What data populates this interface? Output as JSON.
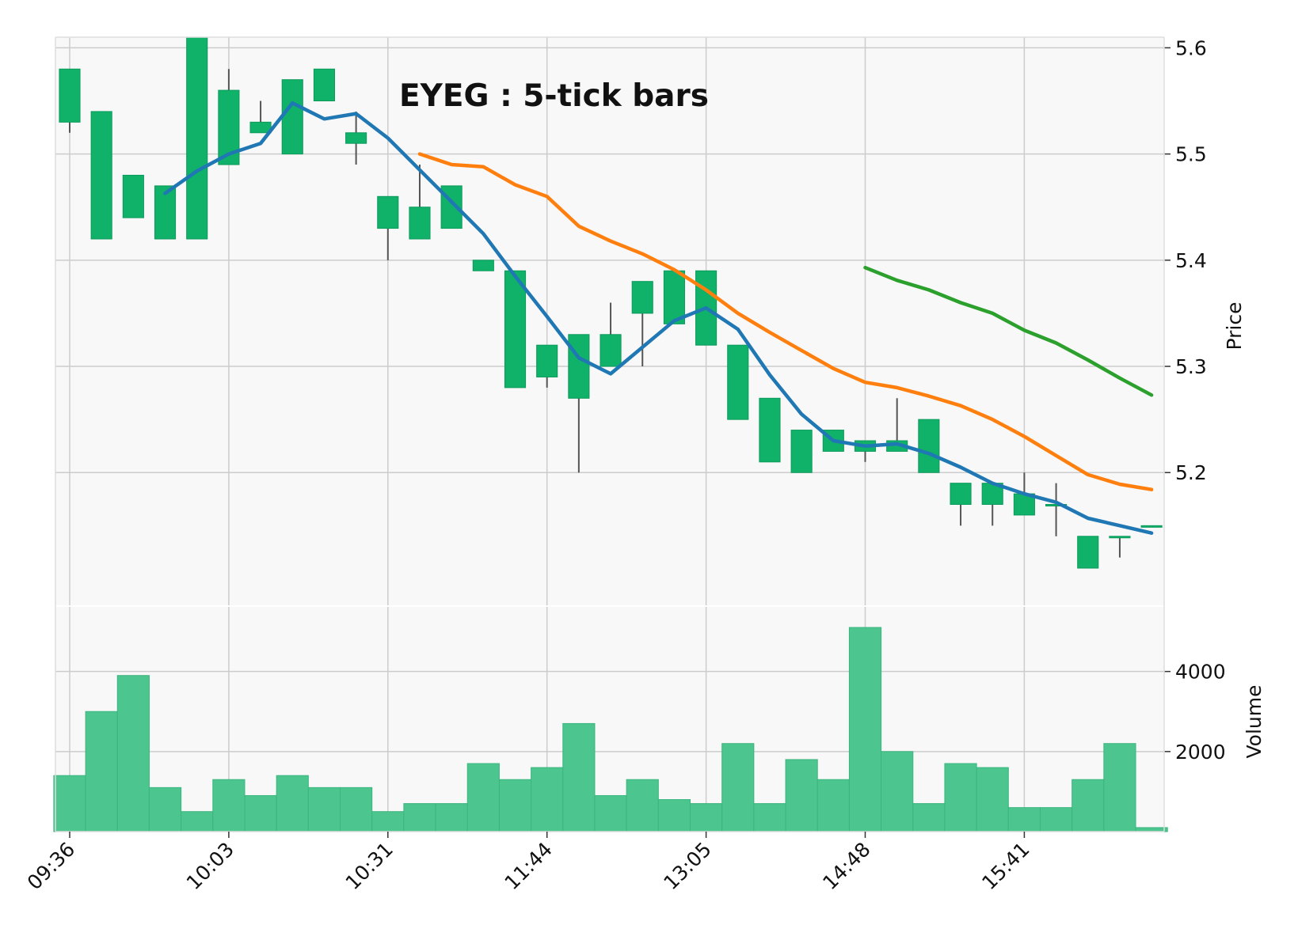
{
  "chart_data": {
    "type": "candlestick",
    "title": "EYEG : 5-tick bars",
    "price_ylabel": "Price",
    "volume_ylabel": "Volume",
    "price_ylim": [
      5.075,
      5.61
    ],
    "volume_ylim": [
      0,
      5100
    ],
    "price_ticks": [
      "5.2",
      "5.3",
      "5.4",
      "5.5",
      "5.6"
    ],
    "volume_ticks": [
      "2000",
      "4000"
    ],
    "grid": true,
    "colors": {
      "up": "#10b26a",
      "down": "#ff3b3b",
      "up_volume": "#4cc68e",
      "down_volume": "#fe6b6b",
      "ma_short": "#1f77b4",
      "ma_mid": "#ff7f0e",
      "ma_long": "#2ca02c",
      "panel_bg": "#f8f8f8",
      "grid": "#cccccc"
    },
    "x_ticks": [
      {
        "index": 0,
        "label": "09:36"
      },
      {
        "index": 5,
        "label": "10:03"
      },
      {
        "index": 10,
        "label": "10:31"
      },
      {
        "index": 15,
        "label": "11:44"
      },
      {
        "index": 20,
        "label": "13:05"
      },
      {
        "index": 25,
        "label": "14:48"
      },
      {
        "index": 30,
        "label": "15:41"
      }
    ],
    "candles": [
      {
        "o": 5.53,
        "h": 5.58,
        "l": 5.52,
        "c": 5.58,
        "v": 1400
      },
      {
        "o": 5.42,
        "h": 5.54,
        "l": 5.42,
        "c": 5.54,
        "v": 3000
      },
      {
        "o": 5.44,
        "h": 5.48,
        "l": 5.44,
        "c": 5.48,
        "v": 3900
      },
      {
        "o": 5.42,
        "h": 5.47,
        "l": 5.42,
        "c": 5.47,
        "v": 1100
      },
      {
        "o": 5.42,
        "h": 5.61,
        "l": 5.42,
        "c": 5.61,
        "v": 500
      },
      {
        "o": 5.49,
        "h": 5.58,
        "l": 5.49,
        "c": 5.56,
        "v": 1300
      },
      {
        "o": 5.52,
        "h": 5.55,
        "l": 5.52,
        "c": 5.53,
        "v": 900
      },
      {
        "o": 5.5,
        "h": 5.57,
        "l": 5.5,
        "c": 5.57,
        "v": 1400
      },
      {
        "o": 5.55,
        "h": 5.58,
        "l": 5.55,
        "c": 5.58,
        "v": 1100
      },
      {
        "o": 5.51,
        "h": 5.54,
        "l": 5.49,
        "c": 5.52,
        "v": 1100
      },
      {
        "o": 5.43,
        "h": 5.46,
        "l": 5.4,
        "c": 5.46,
        "v": 500
      },
      {
        "o": 5.42,
        "h": 5.49,
        "l": 5.42,
        "c": 5.45,
        "v": 700
      },
      {
        "o": 5.43,
        "h": 5.47,
        "l": 5.43,
        "c": 5.47,
        "v": 700
      },
      {
        "o": 5.39,
        "h": 5.4,
        "l": 5.39,
        "c": 5.4,
        "v": 1700
      },
      {
        "o": 5.28,
        "h": 5.39,
        "l": 5.28,
        "c": 5.39,
        "v": 1300
      },
      {
        "o": 5.29,
        "h": 5.32,
        "l": 5.28,
        "c": 5.32,
        "v": 1600
      },
      {
        "o": 5.27,
        "h": 5.33,
        "l": 5.2,
        "c": 5.33,
        "v": 2700
      },
      {
        "o": 5.3,
        "h": 5.36,
        "l": 5.3,
        "c": 5.33,
        "v": 900
      },
      {
        "o": 5.35,
        "h": 5.38,
        "l": 5.3,
        "c": 5.38,
        "v": 1300
      },
      {
        "o": 5.34,
        "h": 5.39,
        "l": 5.34,
        "c": 5.39,
        "v": 800
      },
      {
        "o": 5.32,
        "h": 5.39,
        "l": 5.32,
        "c": 5.39,
        "v": 700
      },
      {
        "o": 5.25,
        "h": 5.32,
        "l": 5.25,
        "c": 5.32,
        "v": 2200
      },
      {
        "o": 5.21,
        "h": 5.27,
        "l": 5.21,
        "c": 5.27,
        "v": 700
      },
      {
        "o": 5.2,
        "h": 5.24,
        "l": 5.2,
        "c": 5.24,
        "v": 1800
      },
      {
        "o": 5.22,
        "h": 5.24,
        "l": 5.22,
        "c": 5.24,
        "v": 1300
      },
      {
        "o": 5.22,
        "h": 5.23,
        "l": 5.21,
        "c": 5.23,
        "v": 5100
      },
      {
        "o": 5.22,
        "h": 5.27,
        "l": 5.22,
        "c": 5.23,
        "v": 2000
      },
      {
        "o": 5.2,
        "h": 5.25,
        "l": 5.2,
        "c": 5.25,
        "v": 700
      },
      {
        "o": 5.17,
        "h": 5.19,
        "l": 5.15,
        "c": 5.19,
        "v": 1700
      },
      {
        "o": 5.17,
        "h": 5.19,
        "l": 5.15,
        "c": 5.19,
        "v": 1600
      },
      {
        "o": 5.16,
        "h": 5.2,
        "l": 5.16,
        "c": 5.18,
        "v": 600
      },
      {
        "o": 5.17,
        "h": 5.19,
        "l": 5.14,
        "c": 5.17,
        "v": 600
      },
      {
        "o": 5.11,
        "h": 5.14,
        "l": 5.11,
        "c": 5.14,
        "v": 1300
      },
      {
        "o": 5.14,
        "h": 5.14,
        "l": 5.12,
        "c": 5.14,
        "v": 2200
      },
      {
        "o": 5.15,
        "h": 5.15,
        "l": 5.15,
        "c": 5.15,
        "v": 100
      }
    ],
    "moving_averages": [
      {
        "color_key": "ma_short",
        "start_index": 3,
        "values": [
          5.463,
          5.484,
          5.5,
          5.51,
          5.548,
          5.533,
          5.538,
          5.515,
          5.485,
          5.455,
          5.425,
          5.385,
          5.347,
          5.308,
          5.293,
          5.318,
          5.343,
          5.355,
          5.335,
          5.292,
          5.255,
          5.23,
          5.225,
          5.227,
          5.218,
          5.205,
          5.19,
          5.18,
          5.172,
          5.157,
          5.15,
          5.143
        ]
      },
      {
        "color_key": "ma_mid",
        "start_index": 11,
        "values": [
          5.5,
          5.49,
          5.488,
          5.471,
          5.46,
          5.432,
          5.418,
          5.406,
          5.391,
          5.372,
          5.35,
          5.332,
          5.315,
          5.298,
          5.285,
          5.28,
          5.272,
          5.263,
          5.25,
          5.234,
          5.216,
          5.198,
          5.189,
          5.184
        ]
      },
      {
        "color_key": "ma_long",
        "start_index": 25,
        "values": [
          5.393,
          5.381,
          5.372,
          5.36,
          5.35,
          5.334,
          5.322,
          5.306,
          5.289,
          5.273
        ]
      }
    ]
  }
}
